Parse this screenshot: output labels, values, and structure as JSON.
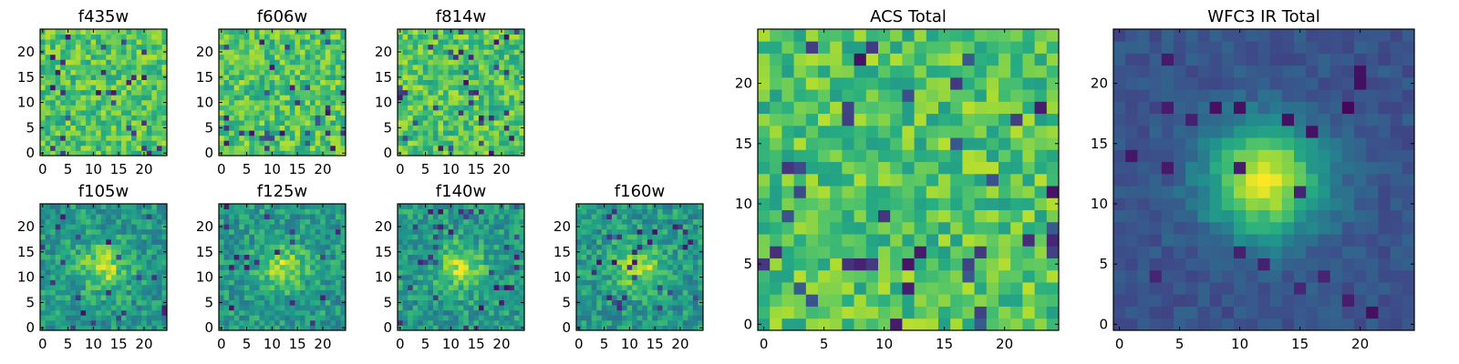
{
  "chart_data": {
    "type": "heatmap",
    "colormap": "viridis",
    "axis_ticks": {
      "small": [
        "0",
        "5",
        "10",
        "15",
        "20"
      ],
      "large": [
        "0",
        "5",
        "10",
        "15",
        "20"
      ]
    },
    "panels": [
      {
        "title": "f435w",
        "size": "small",
        "pattern": "noise",
        "grid": [
          25,
          25
        ],
        "xlim": [
          0,
          24
        ],
        "ylim": [
          0,
          24
        ]
      },
      {
        "title": "f606w",
        "size": "small",
        "pattern": "noise",
        "grid": [
          25,
          25
        ],
        "xlim": [
          0,
          24
        ],
        "ylim": [
          0,
          24
        ]
      },
      {
        "title": "f814w",
        "size": "small",
        "pattern": "noise",
        "grid": [
          25,
          25
        ],
        "xlim": [
          0,
          24
        ],
        "ylim": [
          0,
          24
        ]
      },
      {
        "title": "f105w",
        "size": "small",
        "pattern": "source",
        "grid": [
          25,
          25
        ],
        "xlim": [
          0,
          24
        ],
        "ylim": [
          0,
          24
        ],
        "source_center": [
          12,
          12
        ]
      },
      {
        "title": "f125w",
        "size": "small",
        "pattern": "source",
        "grid": [
          25,
          25
        ],
        "xlim": [
          0,
          24
        ],
        "ylim": [
          0,
          24
        ],
        "source_center": [
          12,
          12
        ]
      },
      {
        "title": "f140w",
        "size": "small",
        "pattern": "source",
        "grid": [
          25,
          25
        ],
        "xlim": [
          0,
          24
        ],
        "ylim": [
          0,
          24
        ],
        "source_center": [
          12,
          12
        ]
      },
      {
        "title": "f160w",
        "size": "small",
        "pattern": "source",
        "grid": [
          25,
          25
        ],
        "xlim": [
          0,
          24
        ],
        "ylim": [
          0,
          24
        ],
        "source_center": [
          12,
          12
        ]
      },
      {
        "title": "ACS Total",
        "size": "large",
        "pattern": "noise",
        "grid": [
          25,
          25
        ],
        "xlim": [
          0,
          24
        ],
        "ylim": [
          0,
          24
        ]
      },
      {
        "title": "WFC3 IR Total",
        "size": "large",
        "pattern": "smooth_source",
        "grid": [
          25,
          25
        ],
        "xlim": [
          0,
          24
        ],
        "ylim": [
          0,
          24
        ],
        "source_center": [
          12,
          12
        ]
      }
    ]
  }
}
